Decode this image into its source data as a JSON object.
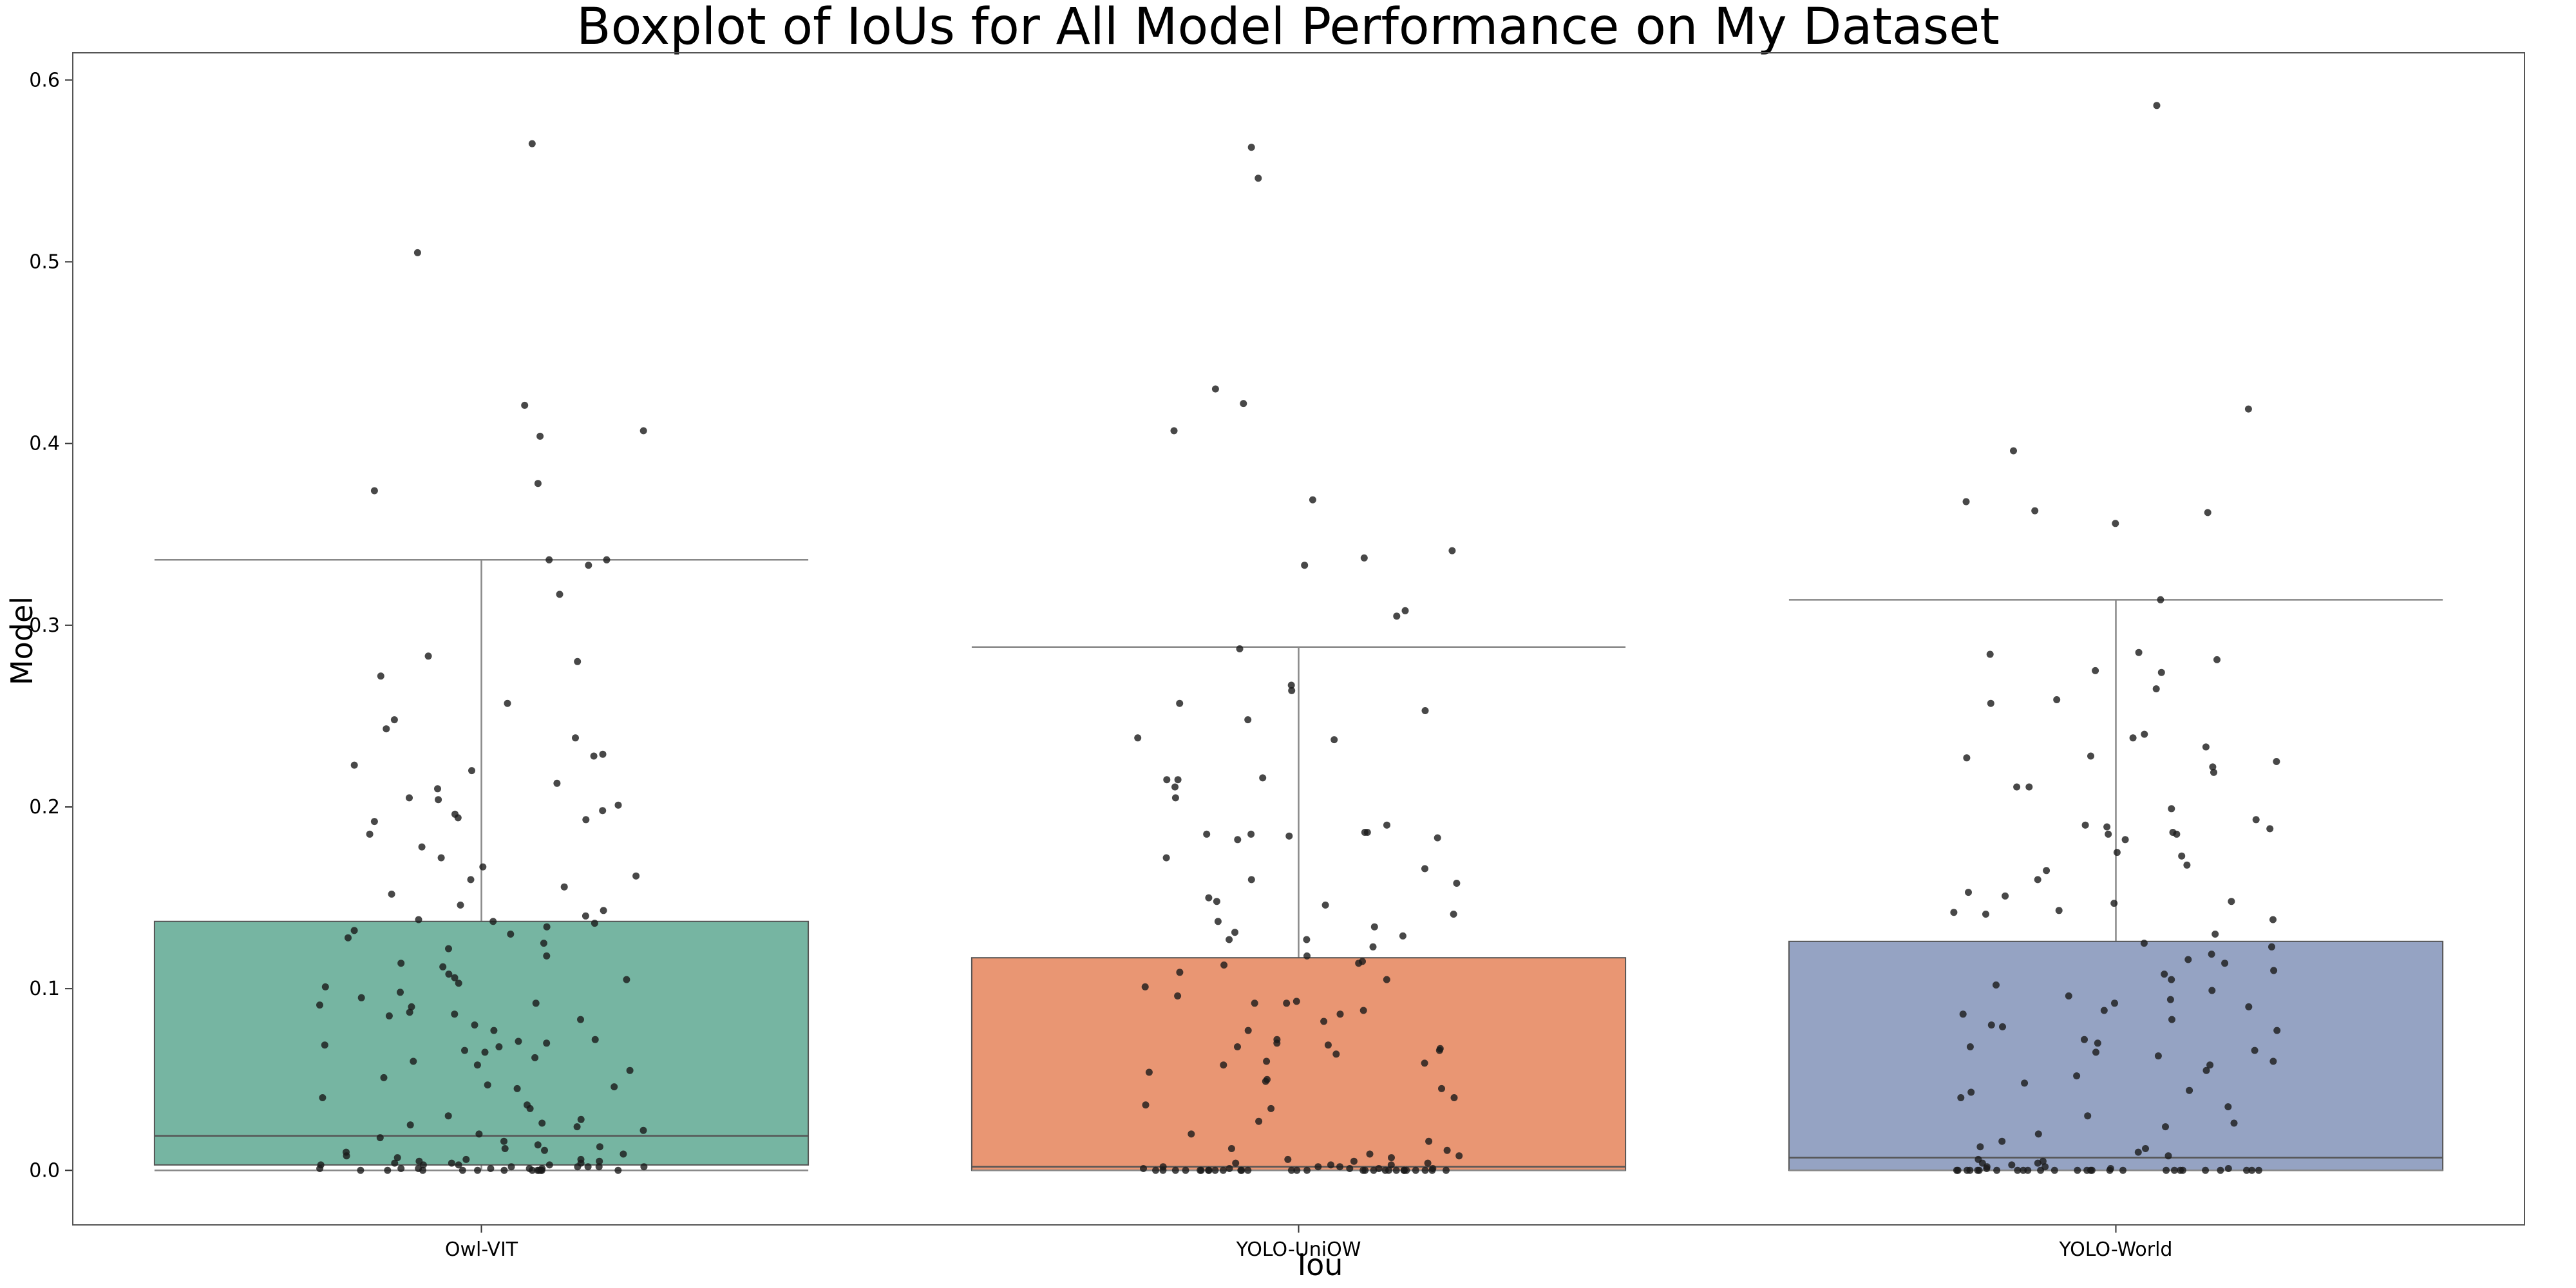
{
  "chart_data": {
    "type": "box",
    "title": "Boxplot of IoUs for All Model Performance on My Dataset",
    "xlabel": "Iou",
    "ylabel": "Model",
    "ylim": [
      -0.03,
      0.615
    ],
    "yticks": [
      0.0,
      0.1,
      0.2,
      0.3,
      0.4,
      0.5,
      0.6
    ],
    "ytick_labels": [
      "0.0",
      "0.1",
      "0.2",
      "0.3",
      "0.4",
      "0.5",
      "0.6"
    ],
    "grid": false,
    "legend": "none",
    "categories": [
      "Owl-VIT",
      "YOLO-UniOW",
      "YOLO-World"
    ],
    "boxes": [
      {
        "name": "Owl-VIT",
        "color": "#76b5a2",
        "whisker_low": 0.0,
        "q1": 0.003,
        "median": 0.019,
        "q3": 0.137,
        "whisker_high": 0.336,
        "points": [
          0.565,
          0.505,
          0.421,
          0.407,
          0.404,
          0.378,
          0.374,
          0.336,
          0.336,
          0.333,
          0.317,
          0.283,
          0.28,
          0.272,
          0.257,
          0.248,
          0.243,
          0.238,
          0.229,
          0.228,
          0.223,
          0.22,
          0.213,
          0.21,
          0.205,
          0.204,
          0.201,
          0.198,
          0.196,
          0.194,
          0.193,
          0.192,
          0.185,
          0.178,
          0.172,
          0.167,
          0.162,
          0.16,
          0.156,
          0.152,
          0.146,
          0.143,
          0.14,
          0.138,
          0.137,
          0.136,
          0.134,
          0.132,
          0.13,
          0.128,
          0.125,
          0.122,
          0.118,
          0.114,
          0.112,
          0.108,
          0.106,
          0.105,
          0.103,
          0.101,
          0.098,
          0.095,
          0.092,
          0.091,
          0.09,
          0.087,
          0.086,
          0.085,
          0.083,
          0.08,
          0.077,
          0.072,
          0.071,
          0.07,
          0.069,
          0.068,
          0.066,
          0.065,
          0.062,
          0.06,
          0.058,
          0.055,
          0.051,
          0.047,
          0.046,
          0.045,
          0.04,
          0.036,
          0.034,
          0.03,
          0.028,
          0.026,
          0.025,
          0.024,
          0.022,
          0.02,
          0.018,
          0.016,
          0.014,
          0.013,
          0.012,
          0.011,
          0.01,
          0.009,
          0.008,
          0.007,
          0.006,
          0.006,
          0.005,
          0.005,
          0.004,
          0.004,
          0.004,
          0.003,
          0.003,
          0.003,
          0.003,
          0.002,
          0.002,
          0.002,
          0.002,
          0.002,
          0.001,
          0.001,
          0.001,
          0.001,
          0.001,
          0.001,
          0.0,
          0.0,
          0.0,
          0.0,
          0.0,
          0.0,
          0.0,
          0.0,
          0.0,
          0.0,
          0.0,
          0.0
        ]
      },
      {
        "name": "YOLO-UniOW",
        "color": "#e99673",
        "whisker_low": 0.0,
        "q1": 0.0,
        "median": 0.002,
        "q3": 0.117,
        "whisker_high": 0.288,
        "points": [
          0.563,
          0.546,
          0.43,
          0.422,
          0.407,
          0.369,
          0.341,
          0.337,
          0.333,
          0.308,
          0.305,
          0.287,
          0.267,
          0.264,
          0.257,
          0.253,
          0.248,
          0.238,
          0.237,
          0.216,
          0.215,
          0.215,
          0.211,
          0.205,
          0.19,
          0.186,
          0.186,
          0.185,
          0.185,
          0.184,
          0.183,
          0.182,
          0.172,
          0.166,
          0.16,
          0.158,
          0.15,
          0.148,
          0.146,
          0.141,
          0.137,
          0.134,
          0.131,
          0.129,
          0.127,
          0.127,
          0.123,
          0.118,
          0.115,
          0.114,
          0.113,
          0.109,
          0.105,
          0.101,
          0.096,
          0.093,
          0.092,
          0.092,
          0.088,
          0.086,
          0.082,
          0.077,
          0.072,
          0.07,
          0.069,
          0.068,
          0.067,
          0.066,
          0.064,
          0.06,
          0.059,
          0.058,
          0.054,
          0.05,
          0.049,
          0.045,
          0.04,
          0.036,
          0.034,
          0.027,
          0.02,
          0.016,
          0.012,
          0.011,
          0.009,
          0.008,
          0.007,
          0.006,
          0.005,
          0.004,
          0.004,
          0.003,
          0.003,
          0.002,
          0.002,
          0.002,
          0.001,
          0.001,
          0.001,
          0.001,
          0.001,
          0.0,
          0.0,
          0.0,
          0.0,
          0.0,
          0.0,
          0.0,
          0.0,
          0.0,
          0.0,
          0.0,
          0.0,
          0.0,
          0.0,
          0.0,
          0.0,
          0.0,
          0.0,
          0.0,
          0.0,
          0.0,
          0.0,
          0.0,
          0.0,
          0.0,
          0.0,
          0.0,
          0.0,
          0.0
        ]
      },
      {
        "name": "YOLO-World",
        "color": "#95a3c3",
        "whisker_low": 0.0,
        "q1": 0.0,
        "median": 0.007,
        "q3": 0.126,
        "whisker_high": 0.314,
        "points": [
          0.586,
          0.419,
          0.396,
          0.368,
          0.363,
          0.362,
          0.356,
          0.314,
          0.285,
          0.284,
          0.281,
          0.275,
          0.274,
          0.265,
          0.259,
          0.257,
          0.24,
          0.238,
          0.233,
          0.228,
          0.227,
          0.225,
          0.222,
          0.219,
          0.211,
          0.211,
          0.199,
          0.193,
          0.19,
          0.189,
          0.188,
          0.186,
          0.185,
          0.185,
          0.182,
          0.175,
          0.173,
          0.168,
          0.165,
          0.16,
          0.153,
          0.151,
          0.148,
          0.147,
          0.143,
          0.142,
          0.141,
          0.138,
          0.13,
          0.125,
          0.123,
          0.119,
          0.116,
          0.114,
          0.11,
          0.108,
          0.105,
          0.102,
          0.099,
          0.096,
          0.094,
          0.092,
          0.09,
          0.088,
          0.086,
          0.083,
          0.08,
          0.079,
          0.077,
          0.072,
          0.07,
          0.068,
          0.066,
          0.065,
          0.063,
          0.06,
          0.058,
          0.055,
          0.052,
          0.048,
          0.044,
          0.043,
          0.04,
          0.035,
          0.03,
          0.026,
          0.024,
          0.02,
          0.016,
          0.013,
          0.012,
          0.01,
          0.008,
          0.006,
          0.005,
          0.004,
          0.004,
          0.003,
          0.002,
          0.002,
          0.001,
          0.001,
          0.001,
          0.0,
          0.0,
          0.0,
          0.0,
          0.0,
          0.0,
          0.0,
          0.0,
          0.0,
          0.0,
          0.0,
          0.0,
          0.0,
          0.0,
          0.0,
          0.0,
          0.0,
          0.0,
          0.0,
          0.0,
          0.0,
          0.0,
          0.0,
          0.0,
          0.0,
          0.0,
          0.0
        ]
      }
    ]
  },
  "colors": {
    "box_edge": "#555555",
    "whisker": "#888888",
    "point": "#1a1a1a",
    "frame": "#555555"
  }
}
